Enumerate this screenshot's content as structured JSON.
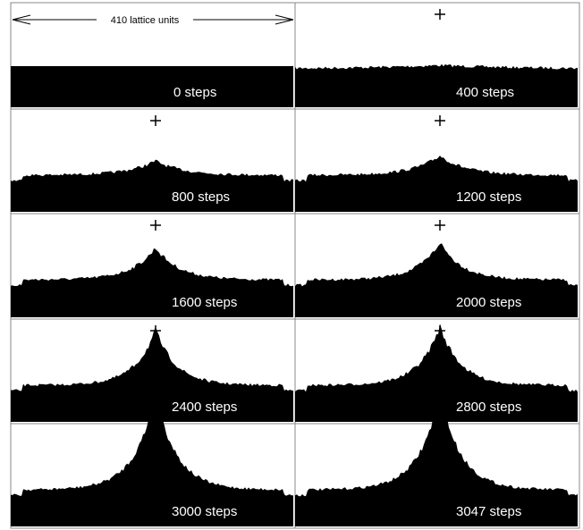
{
  "scale_label": "410 lattice units",
  "panels": [
    {
      "label": "0 steps"
    },
    {
      "label": "400 steps"
    },
    {
      "label": "800 steps"
    },
    {
      "label": "1200 steps"
    },
    {
      "label": "1600 steps"
    },
    {
      "label": "2000 steps"
    },
    {
      "label": "2400 steps"
    },
    {
      "label": "2800 steps"
    },
    {
      "label": "3000 steps"
    },
    {
      "label": "3047 steps"
    }
  ]
}
